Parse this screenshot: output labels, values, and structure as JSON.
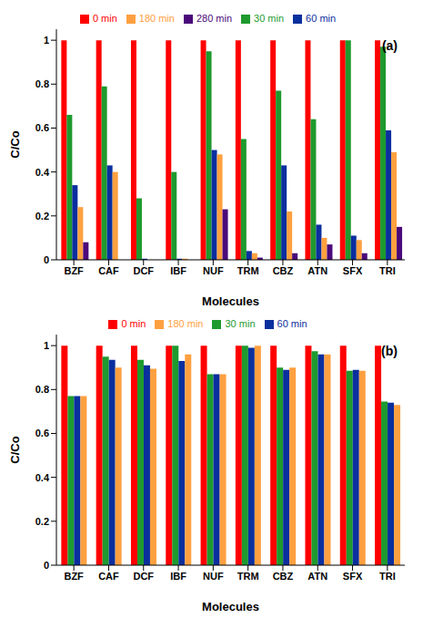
{
  "chart_data": [
    {
      "type": "bar",
      "annotation": "(a)",
      "x_label": "Molecules",
      "y_label": "C/Co",
      "categories": [
        "BZF",
        "CAF",
        "DCF",
        "IBF",
        "NUF",
        "TRM",
        "CBZ",
        "ATN",
        "SFX",
        "TRI"
      ],
      "series": [
        {
          "name": "0 min",
          "color": "#ff0000",
          "values": [
            1,
            1,
            1,
            1,
            1,
            1,
            1,
            1,
            1,
            1
          ]
        },
        {
          "name": "30 min",
          "color": "#1e9a2e",
          "values": [
            0.66,
            0.79,
            0.28,
            0.4,
            0.95,
            0.55,
            0.77,
            0.64,
            1,
            0.97
          ]
        },
        {
          "name": "60 min",
          "color": "#0a2f9e",
          "values": [
            0.34,
            0.43,
            0.005,
            0.005,
            0.5,
            0.04,
            0.43,
            0.16,
            0.11,
            0.59
          ]
        },
        {
          "name": "180 min",
          "color": "#ffa040",
          "values": [
            0.24,
            0.4,
            0,
            0.005,
            0.48,
            0.03,
            0.22,
            0.1,
            0.09,
            0.49
          ]
        },
        {
          "name": "280 min",
          "color": "#4b0a7a",
          "values": [
            0.08,
            null,
            0,
            null,
            0.23,
            0.01,
            0.03,
            0.07,
            0.03,
            0.15
          ]
        }
      ],
      "ylim": [
        0,
        1.05
      ],
      "yticks": [
        0,
        0.2,
        0.4,
        0.6,
        0.8,
        1
      ],
      "legend": "top",
      "grid": false
    },
    {
      "type": "bar",
      "annotation": "(b)",
      "x_label": "Molecules",
      "y_label": "C/Co",
      "categories": [
        "BZF",
        "CAF",
        "DCF",
        "IBF",
        "NUF",
        "TRM",
        "CBZ",
        "ATN",
        "SFX",
        "TRI"
      ],
      "series": [
        {
          "name": "0 min",
          "color": "#ff0000",
          "values": [
            1,
            1,
            1,
            1,
            1,
            1,
            1,
            1,
            1,
            1
          ]
        },
        {
          "name": "30 min",
          "color": "#1e9a2e",
          "values": [
            0.77,
            0.95,
            0.935,
            1,
            0.87,
            1,
            0.9,
            0.975,
            0.885,
            0.745
          ]
        },
        {
          "name": "60 min",
          "color": "#0a2f9e",
          "values": [
            0.77,
            0.935,
            0.91,
            0.93,
            0.87,
            0.99,
            0.89,
            0.96,
            0.89,
            0.74
          ]
        },
        {
          "name": "180 min",
          "color": "#ffa040",
          "values": [
            0.77,
            0.9,
            0.895,
            0.96,
            0.87,
            1,
            0.9,
            0.96,
            0.885,
            0.73
          ]
        }
      ],
      "ylim": [
        0,
        1.05
      ],
      "yticks": [
        0,
        0.2,
        0.4,
        0.6,
        0.8,
        1
      ],
      "legend": "top",
      "grid": false
    }
  ]
}
